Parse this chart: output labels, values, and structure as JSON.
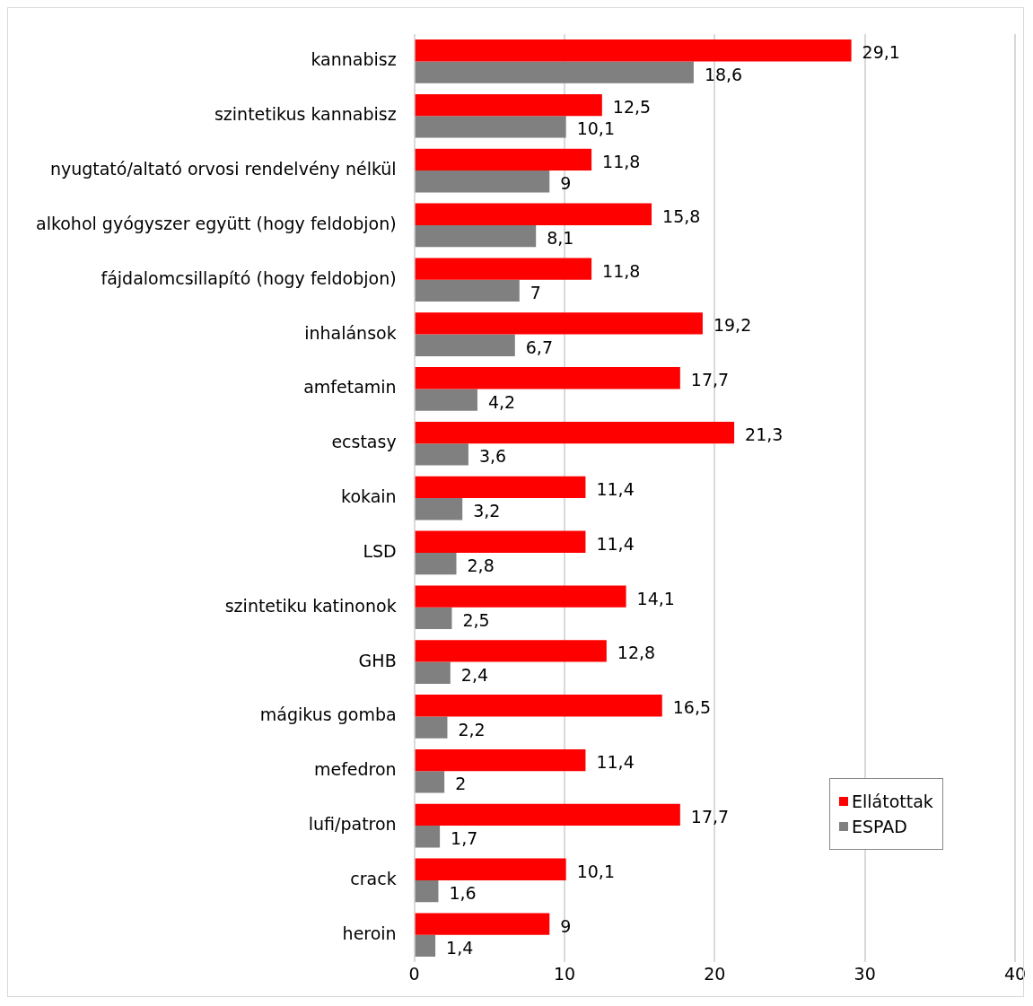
{
  "chart_data": {
    "type": "bar",
    "orientation": "horizontal",
    "categories": [
      "kannabisz",
      "szintetikus kannabisz",
      "nyugtató/altató orvosi rendelvény nélkül",
      "alkohol gyógyszer együtt (hogy feldobjon)",
      "fájdalomcsillapító (hogy feldobjon)",
      "inhalánsok",
      "amfetamin",
      "ecstasy",
      "kokain",
      "LSD",
      "szintetiku katinonok",
      "GHB",
      "mágikus gomba",
      "mefedron",
      "lufi/patron",
      "crack",
      "heroin"
    ],
    "series": [
      {
        "name": "Ellátottak",
        "color": "#ff0000",
        "values": [
          29.1,
          12.5,
          11.8,
          15.8,
          11.8,
          19.2,
          17.7,
          21.3,
          11.4,
          11.4,
          14.1,
          12.8,
          16.5,
          11.4,
          17.7,
          10.1,
          9
        ],
        "value_labels": [
          "29,1",
          "12,5",
          "11,8",
          "15,8",
          "11,8",
          "19,2",
          "17,7",
          "21,3",
          "11,4",
          "11,4",
          "14,1",
          "12,8",
          "16,5",
          "11,4",
          "17,7",
          "10,1",
          "9"
        ]
      },
      {
        "name": "ESPAD",
        "color": "#808080",
        "values": [
          18.6,
          10.1,
          9,
          8.1,
          7,
          6.7,
          4.2,
          3.6,
          3.2,
          2.8,
          2.5,
          2.4,
          2.2,
          2,
          1.7,
          1.6,
          1.4
        ],
        "value_labels": [
          "18,6",
          "10,1",
          "9",
          "8,1",
          "7",
          "6,7",
          "4,2",
          "3,6",
          "3,2",
          "2,8",
          "2,5",
          "2,4",
          "2,2",
          "2",
          "1,7",
          "1,6",
          "1,4"
        ]
      }
    ],
    "xlim": [
      0,
      40
    ],
    "xticks": [
      0,
      10,
      20,
      30,
      40
    ],
    "grid": "x",
    "legend": "bottom right"
  }
}
